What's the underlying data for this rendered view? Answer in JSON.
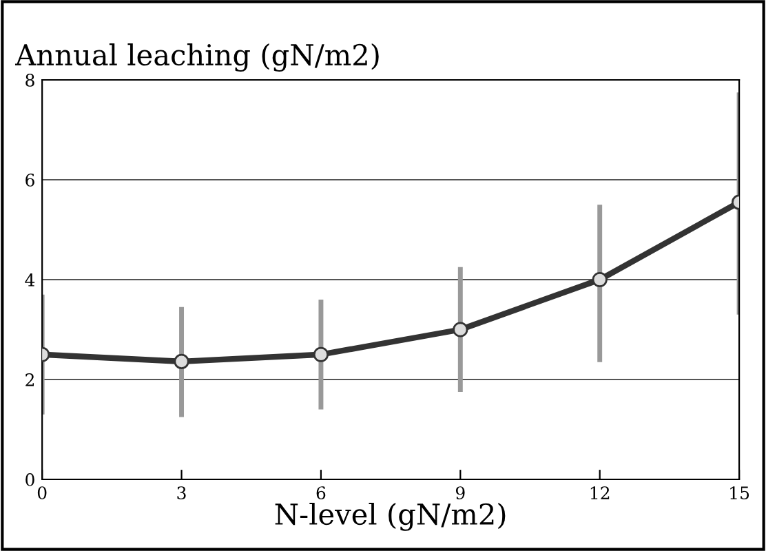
{
  "chart_data": {
    "type": "line",
    "title": "Annual leaching (gN/m2)",
    "xlabel": "N-level (gN/m2)",
    "x": [
      0,
      3,
      6,
      9,
      12,
      15
    ],
    "series": [
      {
        "color": "#333333",
        "values": [
          2.5,
          2.36,
          2.5,
          3.0,
          4.0,
          5.55
        ],
        "errors": [
          [
            1.3,
            3.7
          ],
          [
            1.25,
            3.45
          ],
          [
            1.4,
            3.6
          ],
          [
            1.75,
            4.25
          ],
          [
            2.35,
            5.5
          ],
          [
            3.3,
            7.75
          ]
        ]
      }
    ],
    "xlim": [
      0,
      15
    ],
    "ylim": [
      0,
      8
    ],
    "xticks": [
      0,
      3,
      6,
      9,
      12,
      15
    ],
    "yticks": [
      0,
      2,
      4,
      6,
      8
    ],
    "grid": "y",
    "marker": "circle",
    "line_style": "solid"
  }
}
